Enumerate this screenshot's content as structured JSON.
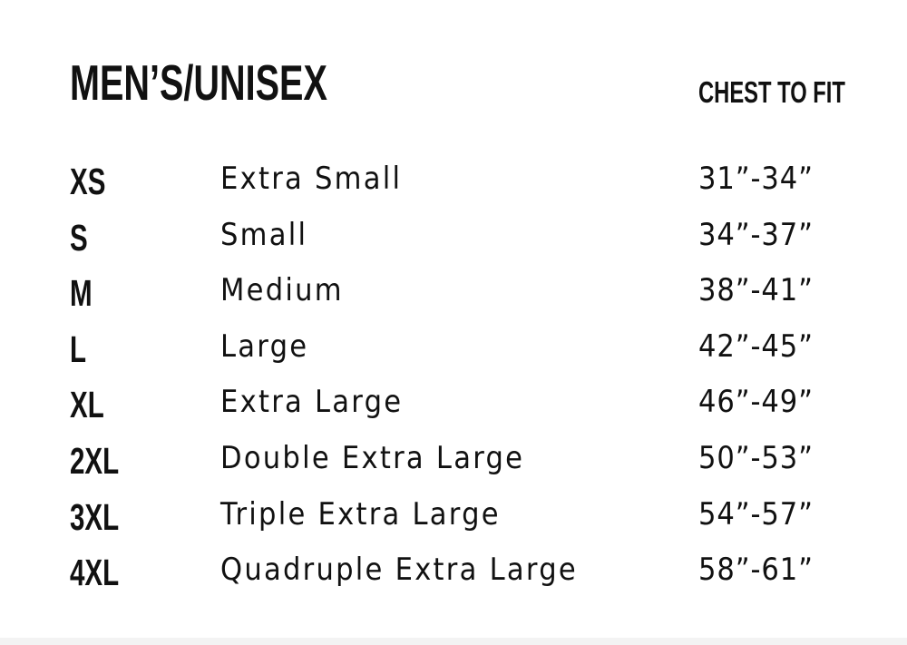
{
  "title": "MEN’S/UNISEX",
  "column_header": "CHEST TO FIT",
  "rows": [
    {
      "size": "XS",
      "name": "Extra Small",
      "chest": "31”-34”"
    },
    {
      "size": "S",
      "name": "Small",
      "chest": "34”-37”"
    },
    {
      "size": "M",
      "name": "Medium",
      "chest": "38”-41”"
    },
    {
      "size": "L",
      "name": "Large",
      "chest": "42”-45”"
    },
    {
      "size": "XL",
      "name": "Extra Large",
      "chest": "46”-49”"
    },
    {
      "size": "2XL",
      "name": "Double Extra Large",
      "chest": "50”-53”"
    },
    {
      "size": "3XL",
      "name": "Triple Extra Large",
      "chest": "54”-57”"
    },
    {
      "size": "4XL",
      "name": "Quadruple Extra Large",
      "chest": "58”-61”"
    }
  ]
}
